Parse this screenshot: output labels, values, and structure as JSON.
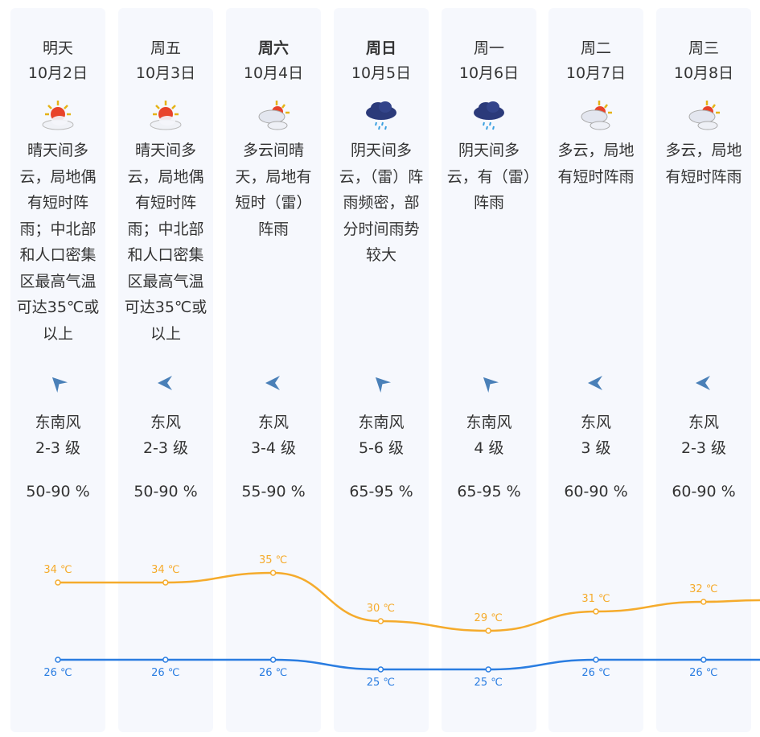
{
  "days": [
    {
      "day": "明天",
      "date": "10月2日",
      "bold": false,
      "icon": "sunny-cloudy-icon",
      "desc": "晴天间多云，局地偶有短时阵雨；中北部和人口密集区最高气温可达35℃或以上",
      "wind_dir": "东南风",
      "wind_level": "2-3 级",
      "humidity": "50-90 %",
      "high": 34,
      "low": 26,
      "high_label": "34 ℃",
      "low_label": "26 ℃"
    },
    {
      "day": "周五",
      "date": "10月3日",
      "bold": false,
      "icon": "sunny-cloudy-icon",
      "desc": "晴天间多云，局地偶有短时阵雨；中北部和人口密集区最高气温可达35℃或以上",
      "wind_dir": "东风",
      "wind_level": "2-3 级",
      "humidity": "50-90 %",
      "high": 34,
      "low": 26,
      "high_label": "34 ℃",
      "low_label": "26 ℃"
    },
    {
      "day": "周六",
      "date": "10月4日",
      "bold": true,
      "icon": "cloudy-sunny-icon",
      "desc": "多云间晴天，局地有短时（雷）阵雨",
      "wind_dir": "东风",
      "wind_level": "3-4 级",
      "humidity": "55-90 %",
      "high": 35,
      "low": 26,
      "high_label": "35 ℃",
      "low_label": "26 ℃"
    },
    {
      "day": "周日",
      "date": "10月5日",
      "bold": true,
      "icon": "thunder-rain-icon",
      "desc": "阴天间多云，（雷）阵雨频密，部分时间雨势较大",
      "wind_dir": "东南风",
      "wind_level": "5-6 级",
      "humidity": "65-95 %",
      "high": 30,
      "low": 25,
      "high_label": "30 ℃",
      "low_label": "25 ℃"
    },
    {
      "day": "周一",
      "date": "10月6日",
      "bold": false,
      "icon": "thunder-rain-icon",
      "desc": "阴天间多云，有（雷）阵雨",
      "wind_dir": "东南风",
      "wind_level": "4 级",
      "humidity": "65-95 %",
      "high": 29,
      "low": 25,
      "high_label": "29 ℃",
      "low_label": "25 ℃"
    },
    {
      "day": "周二",
      "date": "10月7日",
      "bold": false,
      "icon": "cloudy-sunny-icon",
      "desc": "多云，局地有短时阵雨",
      "wind_dir": "东风",
      "wind_level": "3 级",
      "humidity": "60-90 %",
      "high": 31,
      "low": 26,
      "high_label": "31 ℃",
      "low_label": "26 ℃"
    },
    {
      "day": "周三",
      "date": "10月8日",
      "bold": false,
      "icon": "cloudy-sunny-icon",
      "desc": "多云，局地有短时阵雨",
      "wind_dir": "东风",
      "wind_level": "2-3 级",
      "humidity": "60-90 %",
      "high": 32,
      "low": 26,
      "high_label": "32 ℃",
      "low_label": "26 ℃"
    }
  ],
  "colors": {
    "high": "#f5ab2c",
    "low": "#2a7de1",
    "wind": "#4a80b8",
    "card": "#f6f8fd"
  }
}
